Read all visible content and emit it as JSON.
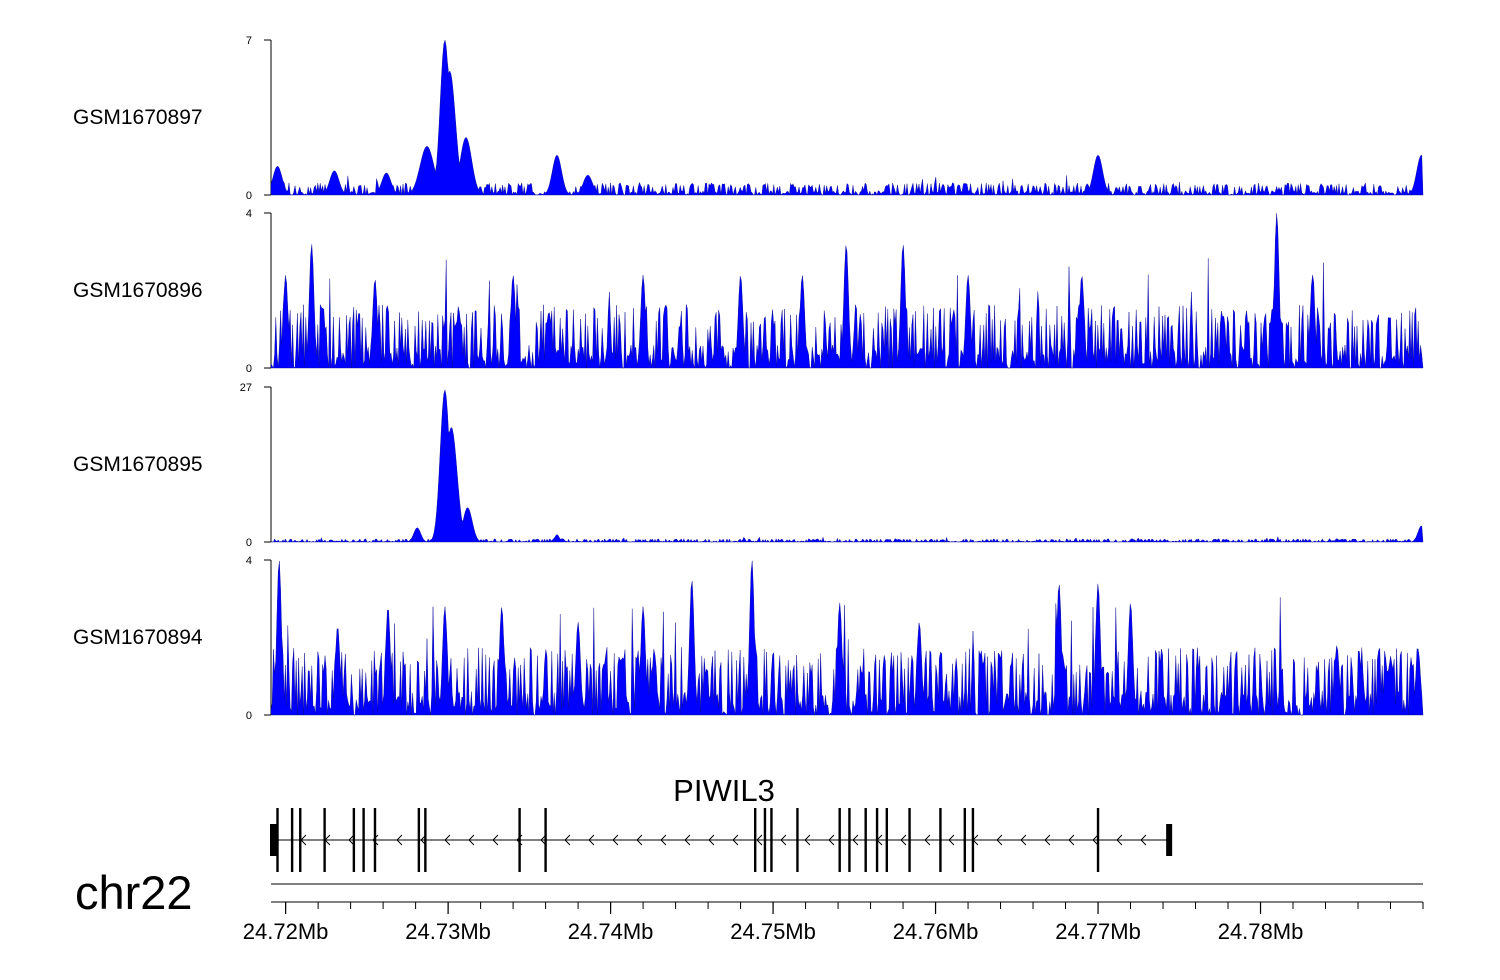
{
  "chart_data": {
    "type": "area",
    "chromosome": "chr22",
    "gene": {
      "name": "PIWIL3",
      "strand": "-",
      "start_mb": 24.7191,
      "end_mb": 24.7745,
      "exons_mb": [
        24.7195,
        24.7204,
        24.7209,
        24.7224,
        24.7242,
        24.7248,
        24.7255,
        24.7282,
        24.7286,
        24.7344,
        24.736,
        24.7489,
        24.7495,
        24.7499,
        24.7515,
        24.7541,
        24.7547,
        24.7557,
        24.7564,
        24.757,
        24.7584,
        24.7603,
        24.7618,
        24.7623,
        24.77
      ]
    },
    "x_axis": {
      "range_mb": [
        24.7191,
        24.79
      ],
      "tick_labels": [
        "24.72Mb",
        "24.73Mb",
        "24.74Mb",
        "24.75Mb",
        "24.76Mb",
        "24.77Mb",
        "24.78Mb"
      ],
      "tick_values_mb": [
        24.72,
        24.73,
        24.74,
        24.75,
        24.76,
        24.77,
        24.78
      ]
    },
    "series": [
      {
        "name": "GSM1670897",
        "ylim": [
          0,
          7
        ],
        "y_tick_labels": [
          "7",
          "0"
        ],
        "color": "#0000ff",
        "peaks": [
          {
            "mb": 24.7195,
            "height": 1.3,
            "width": 0.0004
          },
          {
            "mb": 24.723,
            "height": 1.1,
            "width": 0.0004
          },
          {
            "mb": 24.7262,
            "height": 1.0,
            "width": 0.0004
          },
          {
            "mb": 24.7287,
            "height": 2.2,
            "width": 0.0006
          },
          {
            "mb": 24.7298,
            "height": 7.0,
            "width": 0.0004
          },
          {
            "mb": 24.7301,
            "height": 5.6,
            "width": 0.0005
          },
          {
            "mb": 24.7311,
            "height": 2.6,
            "width": 0.0005
          },
          {
            "mb": 24.7367,
            "height": 1.8,
            "width": 0.0004
          },
          {
            "mb": 24.7386,
            "height": 0.9,
            "width": 0.0004
          },
          {
            "mb": 24.77,
            "height": 1.8,
            "width": 0.0004
          },
          {
            "mb": 24.7899,
            "height": 1.8,
            "width": 0.0004
          }
        ],
        "background_max": 0.6
      },
      {
        "name": "GSM1670896",
        "ylim": [
          0,
          4
        ],
        "y_tick_labels": [
          "4",
          "0"
        ],
        "color": "#0000ff",
        "peaks": [
          {
            "mb": 24.72,
            "height": 2.4,
            "width": 0.0002
          },
          {
            "mb": 24.7216,
            "height": 3.2,
            "width": 0.0002
          },
          {
            "mb": 24.7255,
            "height": 2.3,
            "width": 0.0002
          },
          {
            "mb": 24.734,
            "height": 2.4,
            "width": 0.0002
          },
          {
            "mb": 24.742,
            "height": 2.4,
            "width": 0.0002
          },
          {
            "mb": 24.748,
            "height": 2.4,
            "width": 0.0002
          },
          {
            "mb": 24.7518,
            "height": 2.4,
            "width": 0.0002
          },
          {
            "mb": 24.7545,
            "height": 3.2,
            "width": 0.0002
          },
          {
            "mb": 24.758,
            "height": 3.2,
            "width": 0.0002
          },
          {
            "mb": 24.762,
            "height": 2.4,
            "width": 0.0002
          },
          {
            "mb": 24.769,
            "height": 2.4,
            "width": 0.0002
          },
          {
            "mb": 24.781,
            "height": 4.0,
            "width": 0.0002
          },
          {
            "mb": 24.7832,
            "height": 2.4,
            "width": 0.0002
          }
        ],
        "background_max": 1.8
      },
      {
        "name": "GSM1670895",
        "ylim": [
          0,
          27
        ],
        "y_tick_labels": [
          "27",
          "0"
        ],
        "color": "#0000ff",
        "peaks": [
          {
            "mb": 24.7281,
            "height": 2.5,
            "width": 0.0003
          },
          {
            "mb": 24.7298,
            "height": 26.5,
            "width": 0.0004
          },
          {
            "mb": 24.7302,
            "height": 20.0,
            "width": 0.0005
          },
          {
            "mb": 24.7312,
            "height": 6.0,
            "width": 0.0004
          },
          {
            "mb": 24.7367,
            "height": 1.3,
            "width": 0.0002
          },
          {
            "mb": 24.7899,
            "height": 2.8,
            "width": 0.0003
          }
        ],
        "background_max": 0.6
      },
      {
        "name": "GSM1670894",
        "ylim": [
          0,
          4
        ],
        "y_tick_labels": [
          "4",
          "0"
        ],
        "color": "#0000ff",
        "peaks": [
          {
            "mb": 24.7196,
            "height": 4.0,
            "width": 0.0002
          },
          {
            "mb": 24.7232,
            "height": 2.3,
            "width": 0.0002
          },
          {
            "mb": 24.7263,
            "height": 2.8,
            "width": 0.0002
          },
          {
            "mb": 24.7298,
            "height": 2.8,
            "width": 0.0002
          },
          {
            "mb": 24.7333,
            "height": 2.8,
            "width": 0.0002
          },
          {
            "mb": 24.738,
            "height": 2.4,
            "width": 0.0002
          },
          {
            "mb": 24.742,
            "height": 2.8,
            "width": 0.0002
          },
          {
            "mb": 24.745,
            "height": 3.5,
            "width": 0.0002
          },
          {
            "mb": 24.7487,
            "height": 4.0,
            "width": 0.0002
          },
          {
            "mb": 24.7541,
            "height": 2.9,
            "width": 0.0002
          },
          {
            "mb": 24.759,
            "height": 2.4,
            "width": 0.0002
          },
          {
            "mb": 24.7676,
            "height": 3.4,
            "width": 0.0002
          },
          {
            "mb": 24.77,
            "height": 3.4,
            "width": 0.0002
          },
          {
            "mb": 24.772,
            "height": 2.9,
            "width": 0.0002
          },
          {
            "mb": 24.7847,
            "height": 1.8,
            "width": 0.0002
          },
          {
            "mb": 24.7897,
            "height": 1.7,
            "width": 0.0002
          }
        ],
        "background_max": 1.9
      }
    ],
    "grid": false,
    "legend": "none"
  }
}
